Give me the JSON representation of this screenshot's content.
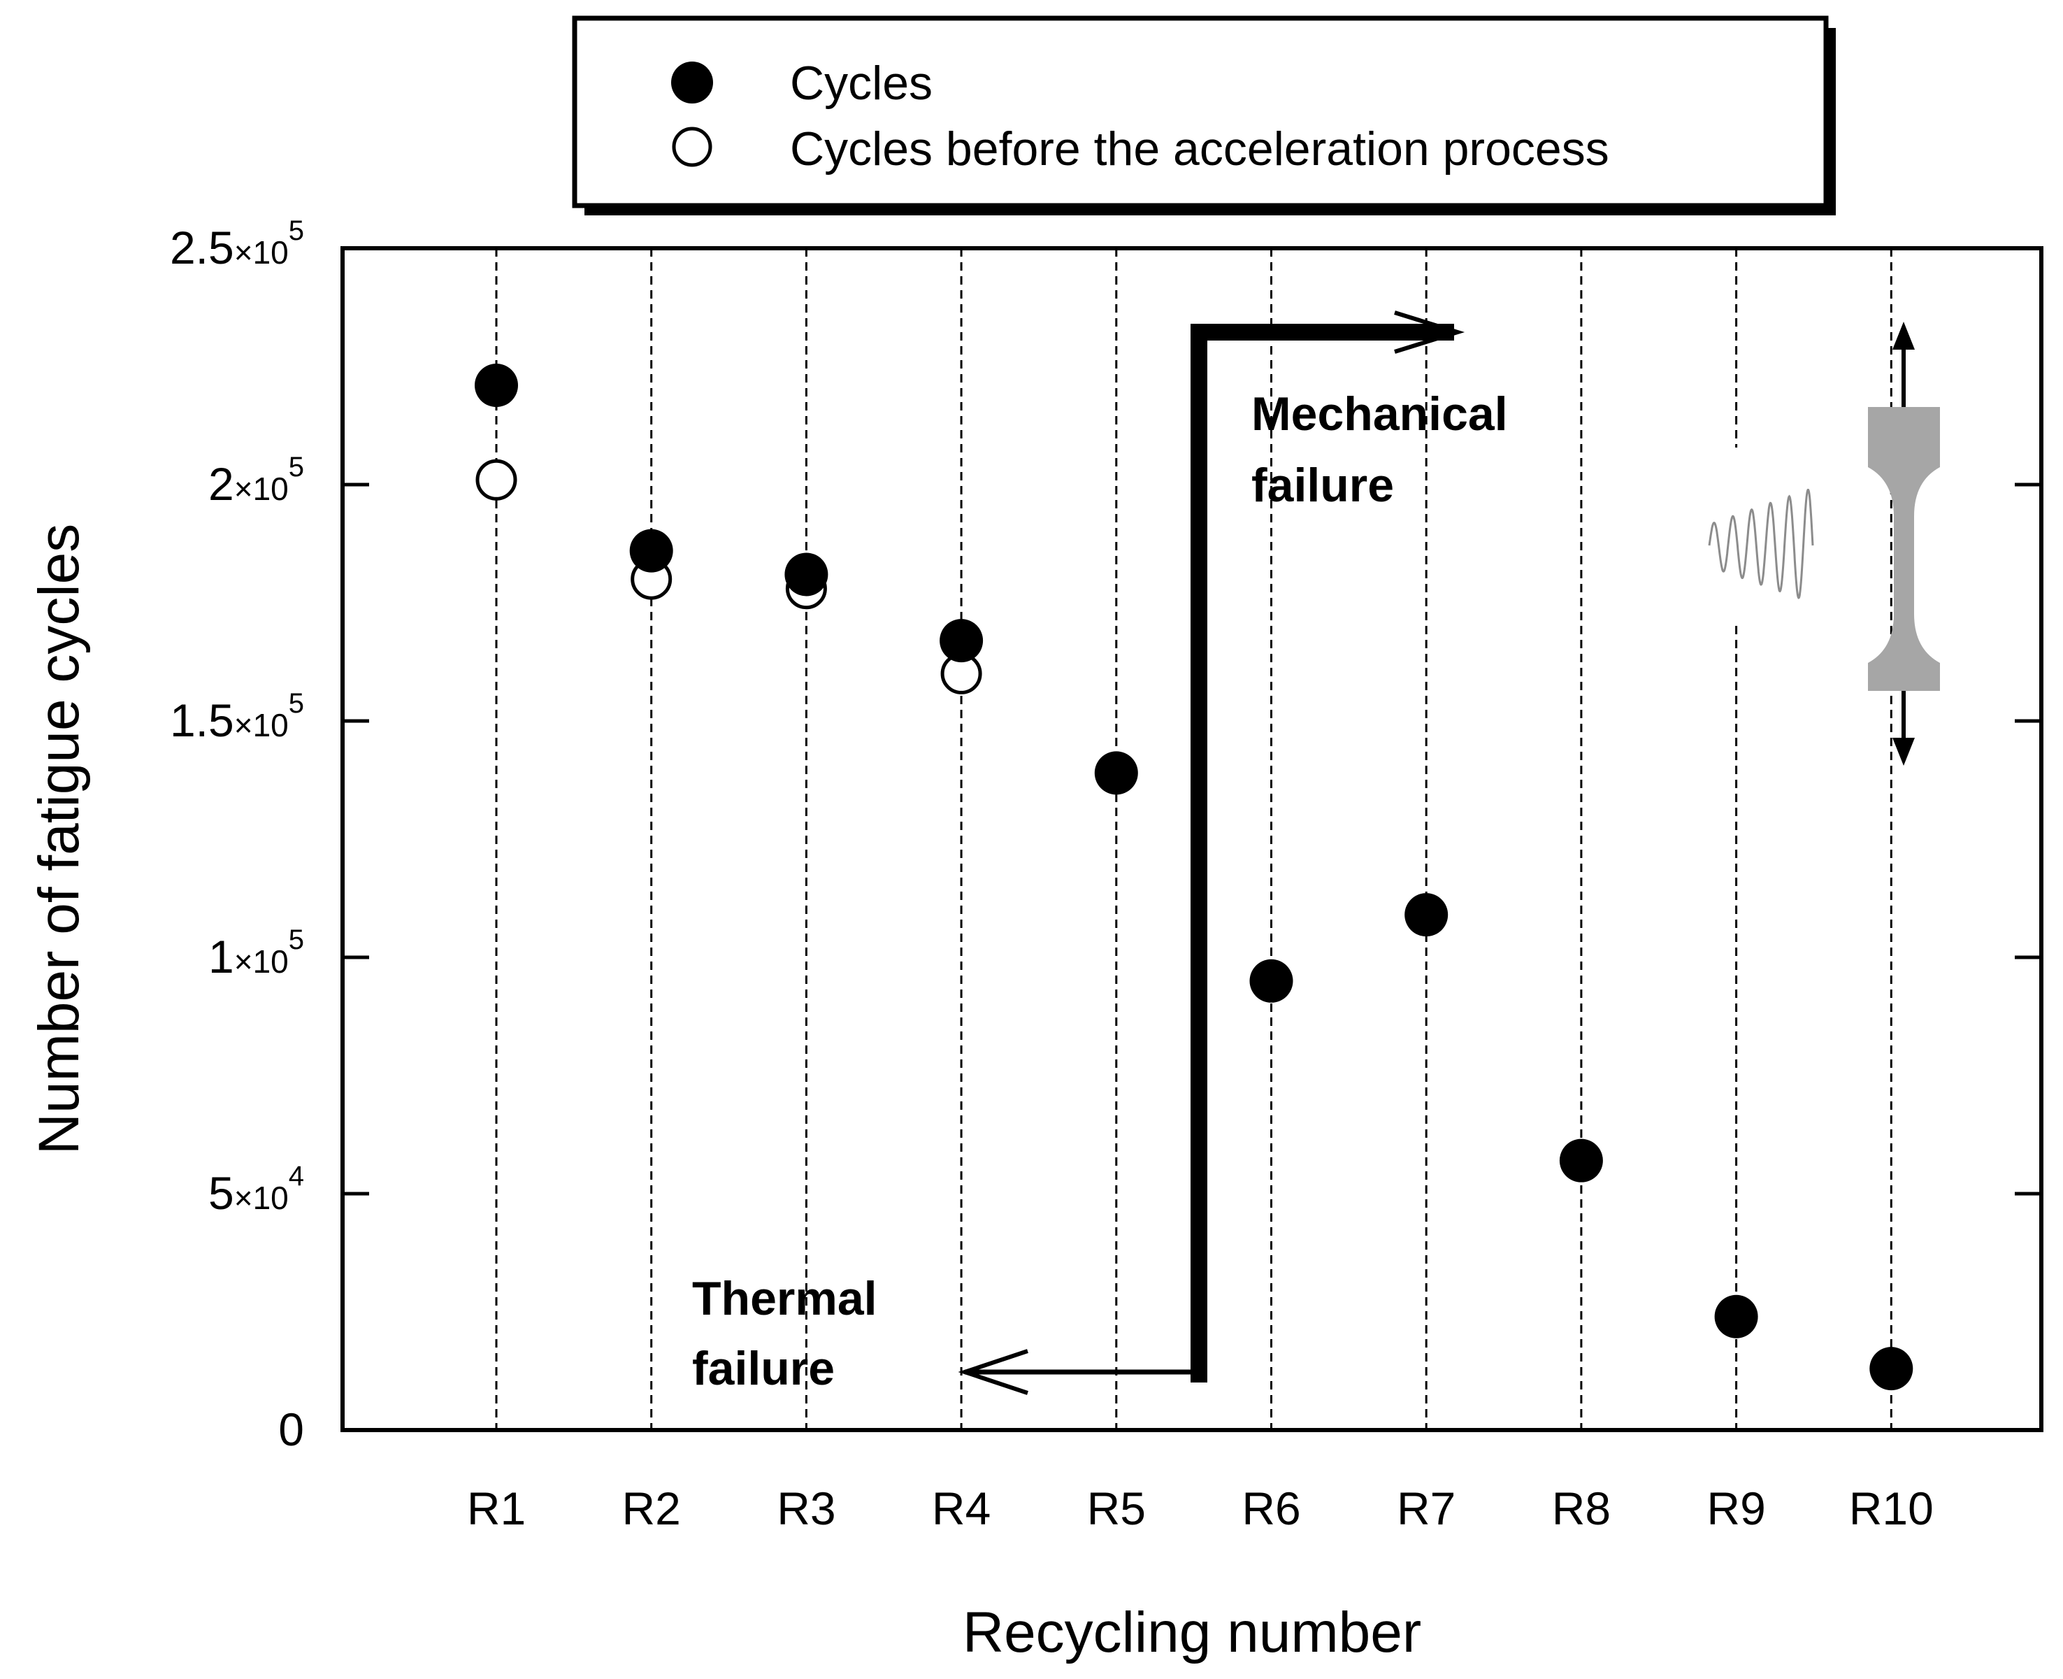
{
  "chart_data": {
    "type": "scatter",
    "title": "",
    "xlabel": "Recycling number",
    "ylabel": "Number of fatigue cycles",
    "categories": [
      "R1",
      "R2",
      "R3",
      "R4",
      "R5",
      "R6",
      "R7",
      "R8",
      "R9",
      "R10"
    ],
    "ylim": [
      0,
      250000
    ],
    "yticks": [
      {
        "value": 0,
        "mantissa": "0",
        "exponent": ""
      },
      {
        "value": 50000,
        "mantissa": "5",
        "exponent": "4"
      },
      {
        "value": 100000,
        "mantissa": "1",
        "exponent": "5"
      },
      {
        "value": 150000,
        "mantissa": "1.5",
        "exponent": "5"
      },
      {
        "value": 200000,
        "mantissa": "2",
        "exponent": "5"
      },
      {
        "value": 250000,
        "mantissa": "2.5",
        "exponent": "5"
      }
    ],
    "series": [
      {
        "name": "Cycles",
        "marker": "filled-circle",
        "values": [
          221000,
          186000,
          181000,
          167000,
          139000,
          95000,
          109000,
          57000,
          24000,
          13000
        ]
      },
      {
        "name": "Cycles before the acceleration process",
        "marker": "open-circle",
        "values": [
          201000,
          180000,
          178000,
          160000,
          null,
          null,
          null,
          null,
          null,
          null
        ]
      }
    ],
    "legend_position": "top-center",
    "annotations": {
      "mechanical": [
        "Mechanical",
        "failure"
      ],
      "thermal": [
        "Thermal",
        "failure"
      ]
    }
  },
  "colors": {
    "marker": "#000000",
    "specimen": "#a6a6a6",
    "wave": "#8c8c8c"
  }
}
